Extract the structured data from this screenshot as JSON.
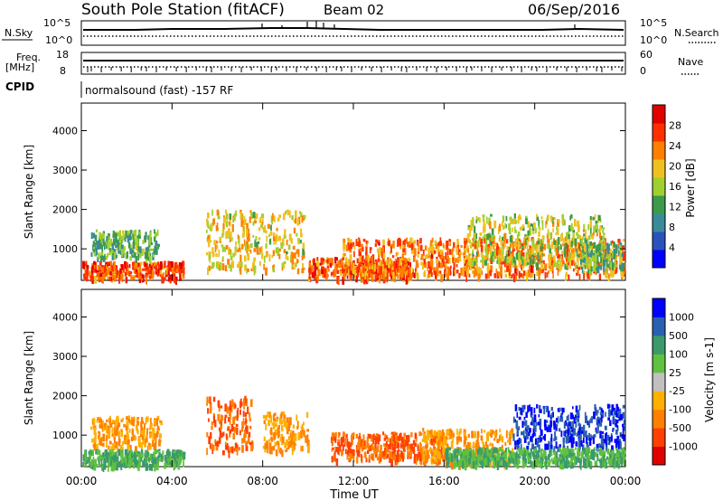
{
  "header": {
    "station": "South Pole Station (fitACF)",
    "beam": "Beam 02",
    "date": "06/Sep/2016"
  },
  "top_panels": {
    "nsky_label": "N.Sky",
    "nsky_ticks": [
      "10^5",
      "10^0"
    ],
    "nsearch_label": "N.Search",
    "nsearch_ticks": [
      "10^5",
      "10^0"
    ],
    "freq_label_1": "Freq.",
    "freq_label_2": "[MHz]",
    "freq_ticks": [
      "18",
      "8"
    ],
    "nave_label": "Nave",
    "nave_ticks": [
      "60",
      "0"
    ],
    "cpid_label": "CPID",
    "cpid_text": "normalsound (fast) -157 RF"
  },
  "x_axis": {
    "title": "Time UT",
    "ticks": [
      "00:00",
      "04:00",
      "08:00",
      "12:00",
      "16:00",
      "20:00",
      "00:00"
    ]
  },
  "chart_data": [
    {
      "type": "heatmap",
      "title": "",
      "xlabel": "Time UT",
      "ylabel": "Slant Range [km]",
      "xlim": [
        0,
        24
      ],
      "ylim": [
        200,
        4700
      ],
      "yticks": [
        "1000",
        "2000",
        "3000",
        "4000"
      ],
      "colorbar": {
        "label": "Power [dB]",
        "ticks": [
          "4",
          "8",
          "12",
          "16",
          "20",
          "24",
          "28"
        ],
        "range": [
          0,
          30
        ]
      },
      "echo_regions_hours_km": [
        {
          "t0": 0.0,
          "t1": 4.5,
          "r0": 280,
          "r1": 700,
          "value": 24
        },
        {
          "t0": 0.4,
          "t1": 3.4,
          "r0": 800,
          "r1": 1500,
          "value": 12
        },
        {
          "t0": 5.5,
          "t1": 9.8,
          "r0": 500,
          "r1": 2000,
          "value": 18
        },
        {
          "t0": 10.0,
          "t1": 14.5,
          "r0": 280,
          "r1": 800,
          "value": 24
        },
        {
          "t0": 11.5,
          "t1": 24.0,
          "r0": 350,
          "r1": 1300,
          "value": 22
        },
        {
          "t0": 17.0,
          "t1": 23.0,
          "r0": 600,
          "r1": 1900,
          "value": 16
        },
        {
          "t0": 22.0,
          "t1": 24.0,
          "r0": 500,
          "r1": 1200,
          "value": 12
        }
      ]
    },
    {
      "type": "heatmap",
      "title": "",
      "xlabel": "Time UT",
      "ylabel": "Slant Range [km]",
      "xlim": [
        0,
        24
      ],
      "ylim": [
        200,
        4700
      ],
      "yticks": [
        "1000",
        "2000",
        "3000",
        "4000"
      ],
      "colorbar": {
        "label": "Velocity [m s-1]",
        "ticks": [
          "1000",
          "500",
          "100",
          "25",
          "-25",
          "-100",
          "-500",
          "-1000"
        ]
      },
      "echo_regions_hours_km": [
        {
          "t0": 0.4,
          "t1": 3.5,
          "r0": 700,
          "r1": 1500,
          "value": -100
        },
        {
          "t0": 0.0,
          "t1": 4.5,
          "r0": 250,
          "r1": 650,
          "value": 100
        },
        {
          "t0": 5.5,
          "t1": 7.5,
          "r0": 600,
          "r1": 2000,
          "value": -500
        },
        {
          "t0": 8.0,
          "t1": 10.0,
          "r0": 600,
          "r1": 1600,
          "value": -100
        },
        {
          "t0": 11.0,
          "t1": 16.0,
          "r0": 400,
          "r1": 1100,
          "value": -500
        },
        {
          "t0": 15.0,
          "t1": 19.0,
          "r0": 300,
          "r1": 1200,
          "value": -100
        },
        {
          "t0": 19.0,
          "t1": 24.0,
          "r0": 700,
          "r1": 1800,
          "value": 1000
        },
        {
          "t0": 16.0,
          "t1": 24.0,
          "r0": 300,
          "r1": 700,
          "value": 100
        }
      ]
    }
  ],
  "colors": {
    "power_scale": [
      "#0000ff",
      "#2a52be",
      "#3a8a9a",
      "#3c9a4a",
      "#a0d030",
      "#f0c020",
      "#ff8000",
      "#ff3000",
      "#e00000"
    ],
    "velocity_scale": [
      "#e00000",
      "#ff4000",
      "#ff8000",
      "#ffb000",
      "#c0c0c0",
      "#60c040",
      "#3a9a6a",
      "#2a60b0",
      "#0000ff"
    ]
  }
}
